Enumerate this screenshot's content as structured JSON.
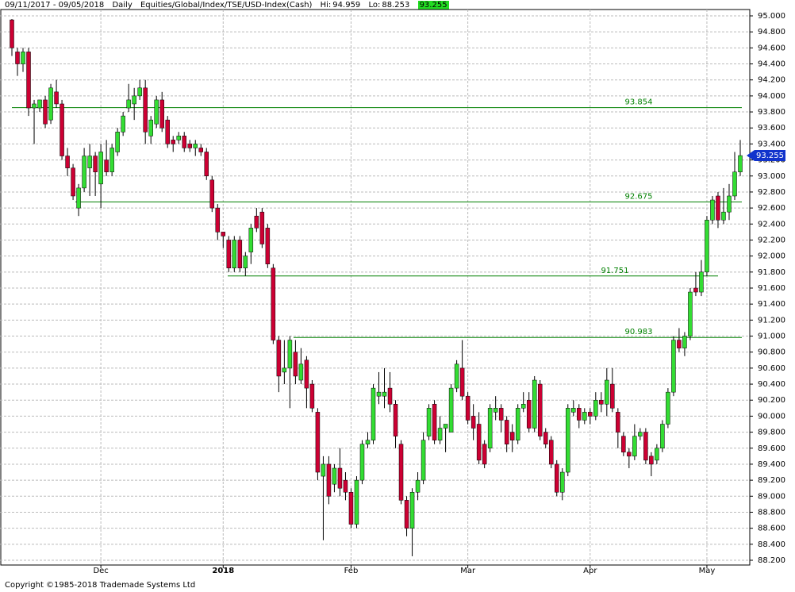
{
  "chart_data": {
    "type": "candlestick",
    "date_range": "09/11/2017 - 09/05/2018",
    "interval": "Daily",
    "symbol": "Equities/Global/Index/TSE/USD-Index(Cash)",
    "high_label": "Hi:",
    "high_value": 94.959,
    "low_label": "Lo:",
    "low_value": 88.253,
    "last": 93.255,
    "copyright": "Copyright ©1985-2018 Trademade Systems Ltd",
    "up_color": "#33dd33",
    "down_color": "#cc0033",
    "level_color": "#008000",
    "grid": true,
    "open": [
      94.95,
      94.55,
      94.4,
      94.55,
      93.85,
      93.85,
      93.95,
      93.7,
      94.05,
      93.9,
      93.25,
      93.1,
      92.6,
      92.85,
      93.1,
      93.25,
      92.9,
      93.2,
      93.05,
      93.3,
      93.55,
      93.85,
      93.9,
      94.0,
      94.1,
      93.5,
      93.65,
      93.95,
      93.7,
      93.45,
      93.45,
      93.5,
      93.4,
      93.35,
      93.35,
      93.3,
      92.95,
      92.6,
      92.3,
      92.2,
      91.85,
      92.2,
      91.85,
      92.05,
      92.5,
      92.55,
      92.35,
      91.85,
      90.95,
      90.55,
      90.6,
      90.8,
      90.45,
      90.7,
      90.4,
      90.05,
      89.25,
      89.4,
      89.15,
      89.35,
      89.2,
      89.05,
      88.65,
      89.2,
      89.65,
      89.7,
      90.25,
      90.25,
      90.35,
      90.15,
      89.65,
      88.95,
      88.6,
      89.05,
      89.2,
      89.75,
      90.15,
      89.7,
      89.85,
      89.8,
      90.35,
      90.6,
      90.25,
      90.0,
      89.9,
      89.65,
      89.6,
      90.05,
      90.1,
      89.95,
      89.8,
      89.7,
      90.1,
      90.2,
      89.85,
      90.4,
      89.8,
      89.7,
      89.4,
      89.05,
      89.3,
      90.05,
      90.1,
      89.95,
      90.05,
      90.0,
      90.2,
      90.15,
      90.4,
      90.05,
      89.75,
      89.55,
      89.5,
      89.75,
      89.8,
      89.5,
      89.45,
      89.6,
      89.9,
      90.3,
      90.95,
      90.85,
      91.0,
      91.6,
      91.55,
      91.8,
      92.45,
      92.75,
      92.45,
      92.55,
      92.75,
      93.05
    ],
    "high": [
      94.96,
      94.6,
      94.6,
      94.6,
      93.95,
      93.95,
      94.0,
      94.15,
      94.2,
      93.95,
      93.35,
      93.15,
      92.9,
      93.35,
      93.4,
      93.3,
      93.4,
      93.45,
      93.4,
      93.6,
      93.8,
      94.15,
      94.1,
      94.2,
      94.2,
      93.75,
      94.0,
      94.05,
      93.75,
      93.5,
      93.55,
      93.55,
      93.45,
      93.45,
      93.4,
      93.35,
      93.0,
      92.65,
      92.3,
      92.25,
      92.25,
      92.25,
      92.05,
      92.4,
      92.6,
      92.6,
      92.4,
      91.9,
      91.0,
      90.95,
      91.0,
      90.95,
      90.85,
      90.75,
      90.45,
      90.1,
      89.5,
      89.5,
      89.4,
      89.6,
      89.3,
      89.1,
      89.25,
      89.7,
      89.8,
      90.4,
      90.55,
      90.6,
      90.55,
      90.2,
      89.7,
      89.0,
      89.1,
      89.3,
      89.8,
      90.15,
      90.2,
      90.0,
      89.9,
      90.4,
      90.7,
      90.95,
      90.3,
      90.15,
      90.05,
      89.7,
      90.15,
      90.25,
      90.15,
      90.0,
      89.9,
      90.15,
      90.3,
      90.3,
      90.5,
      90.45,
      89.85,
      89.75,
      89.45,
      89.35,
      90.15,
      90.2,
      90.15,
      90.1,
      90.1,
      90.3,
      90.3,
      90.6,
      90.6,
      90.1,
      89.8,
      89.6,
      89.9,
      89.85,
      89.85,
      89.55,
      89.65,
      89.95,
      90.35,
      91.0,
      91.1,
      91.05,
      91.6,
      91.8,
      91.95,
      92.5,
      92.75,
      92.8,
      92.85,
      92.9,
      93.3,
      93.45
    ],
    "low": [
      94.5,
      94.25,
      94.3,
      93.75,
      93.4,
      93.8,
      93.6,
      93.65,
      93.85,
      93.2,
      93.0,
      92.7,
      92.5,
      92.8,
      92.75,
      92.75,
      92.6,
      93.0,
      93.0,
      93.25,
      93.5,
      93.8,
      93.7,
      93.95,
      93.4,
      93.4,
      93.6,
      93.55,
      93.35,
      93.3,
      93.4,
      93.3,
      93.3,
      93.25,
      93.25,
      92.95,
      92.55,
      92.2,
      92.1,
      91.8,
      91.8,
      91.8,
      91.75,
      91.9,
      92.3,
      92.1,
      91.85,
      90.9,
      90.3,
      90.4,
      90.1,
      90.4,
      90.4,
      90.1,
      90.05,
      89.2,
      88.45,
      88.9,
      89.05,
      89.0,
      88.95,
      88.6,
      88.6,
      89.15,
      89.6,
      89.65,
      90.15,
      90.1,
      90.05,
      89.6,
      88.9,
      88.5,
      88.25,
      88.95,
      89.15,
      89.7,
      89.65,
      89.65,
      89.55,
      89.8,
      90.3,
      90.2,
      89.9,
      89.7,
      89.4,
      89.35,
      89.55,
      89.95,
      89.8,
      89.55,
      89.55,
      89.65,
      90.05,
      89.8,
      89.8,
      89.7,
      89.6,
      89.35,
      89.0,
      88.95,
      89.25,
      90.0,
      89.85,
      89.9,
      89.9,
      89.95,
      90.05,
      90.0,
      90.05,
      89.6,
      89.5,
      89.35,
      89.45,
      89.7,
      89.4,
      89.25,
      89.4,
      89.55,
      89.85,
      90.25,
      90.8,
      90.75,
      90.95,
      91.5,
      91.5,
      91.75,
      92.4,
      92.35,
      92.4,
      92.45,
      92.7,
      93.0
    ],
    "close": [
      94.6,
      94.4,
      94.55,
      93.85,
      93.9,
      93.95,
      93.65,
      94.1,
      93.9,
      93.25,
      93.1,
      92.75,
      92.85,
      93.25,
      93.25,
      93.05,
      93.3,
      93.05,
      93.35,
      93.55,
      93.75,
      93.95,
      94.0,
      94.1,
      93.55,
      93.7,
      93.95,
      93.6,
      93.4,
      93.4,
      93.5,
      93.35,
      93.35,
      93.4,
      93.3,
      93.0,
      92.6,
      92.3,
      92.25,
      91.85,
      92.2,
      91.85,
      92.0,
      92.35,
      92.35,
      92.15,
      91.9,
      90.95,
      90.5,
      90.6,
      90.95,
      90.5,
      90.65,
      90.35,
      90.1,
      89.3,
      89.4,
      89.0,
      89.35,
      89.1,
      89.05,
      88.65,
      89.2,
      89.65,
      89.7,
      90.35,
      90.3,
      90.3,
      90.15,
      89.75,
      88.95,
      88.6,
      89.05,
      89.2,
      89.7,
      90.1,
      89.7,
      89.85,
      89.9,
      90.35,
      90.65,
      90.25,
      89.95,
      89.85,
      89.45,
      89.4,
      90.1,
      90.1,
      89.95,
      89.65,
      89.7,
      90.1,
      90.15,
      89.85,
      90.45,
      89.75,
      89.65,
      89.4,
      89.05,
      89.3,
      90.1,
      90.1,
      89.95,
      90.05,
      90.0,
      90.2,
      90.15,
      90.45,
      90.1,
      89.8,
      89.55,
      89.5,
      89.75,
      89.8,
      89.45,
      89.4,
      89.6,
      89.9,
      90.3,
      90.95,
      90.85,
      91.0,
      91.55,
      91.55,
      91.8,
      92.45,
      92.7,
      92.45,
      92.55,
      92.75,
      93.05,
      93.255
    ],
    "levels": [
      93.854,
      92.675,
      91.751,
      90.983
    ],
    "xlim": [
      -1,
      132
    ],
    "xticks": [
      {
        "value": 16,
        "label": "Dec"
      },
      {
        "value": 38,
        "label": "2018"
      },
      {
        "value": 61,
        "label": "Feb"
      },
      {
        "value": 82,
        "label": "Mar"
      },
      {
        "value": 104,
        "label": "Apr"
      },
      {
        "value": 125,
        "label": "May"
      }
    ],
    "ylim": [
      88.2,
      95.0
    ],
    "yticks": [
      {
        "value": 88.2,
        "label": "88.200"
      },
      {
        "value": 88.4,
        "label": "88.400"
      },
      {
        "value": 88.6,
        "label": "88.600"
      },
      {
        "value": 88.8,
        "label": "88.800"
      },
      {
        "value": 89.0,
        "label": "89.000"
      },
      {
        "value": 89.2,
        "label": "89.200"
      },
      {
        "value": 89.4,
        "label": "89.400"
      },
      {
        "value": 89.6,
        "label": "89.600"
      },
      {
        "value": 89.8,
        "label": "89.800"
      },
      {
        "value": 90.0,
        "label": "90.000"
      },
      {
        "value": 90.2,
        "label": "90.200"
      },
      {
        "value": 90.4,
        "label": "90.400"
      },
      {
        "value": 90.6,
        "label": "90.600"
      },
      {
        "value": 90.8,
        "label": "90.800"
      },
      {
        "value": 91.0,
        "label": "91.000"
      },
      {
        "value": 91.2,
        "label": "91.200"
      },
      {
        "value": 91.4,
        "label": "91.400"
      },
      {
        "value": 91.6,
        "label": "91.600"
      },
      {
        "value": 91.8,
        "label": "91.800"
      },
      {
        "value": 92.0,
        "label": "92.000"
      },
      {
        "value": 92.2,
        "label": "92.200"
      },
      {
        "value": 92.4,
        "label": "92.400"
      },
      {
        "value": 92.6,
        "label": "92.600"
      },
      {
        "value": 92.8,
        "label": "92.800"
      },
      {
        "value": 93.0,
        "label": "93.000"
      },
      {
        "value": 93.2,
        "label": "93.200"
      },
      {
        "value": 93.4,
        "label": "93.400"
      },
      {
        "value": 93.6,
        "label": "93.600"
      },
      {
        "value": 93.8,
        "label": "93.800"
      },
      {
        "value": 94.0,
        "label": "94.000"
      },
      {
        "value": 94.2,
        "label": "94.200"
      },
      {
        "value": 94.4,
        "label": "94.400"
      },
      {
        "value": 94.6,
        "label": "94.600"
      },
      {
        "value": 94.8,
        "label": "94.800"
      },
      {
        "value": 95.0,
        "label": "95.000"
      }
    ]
  }
}
